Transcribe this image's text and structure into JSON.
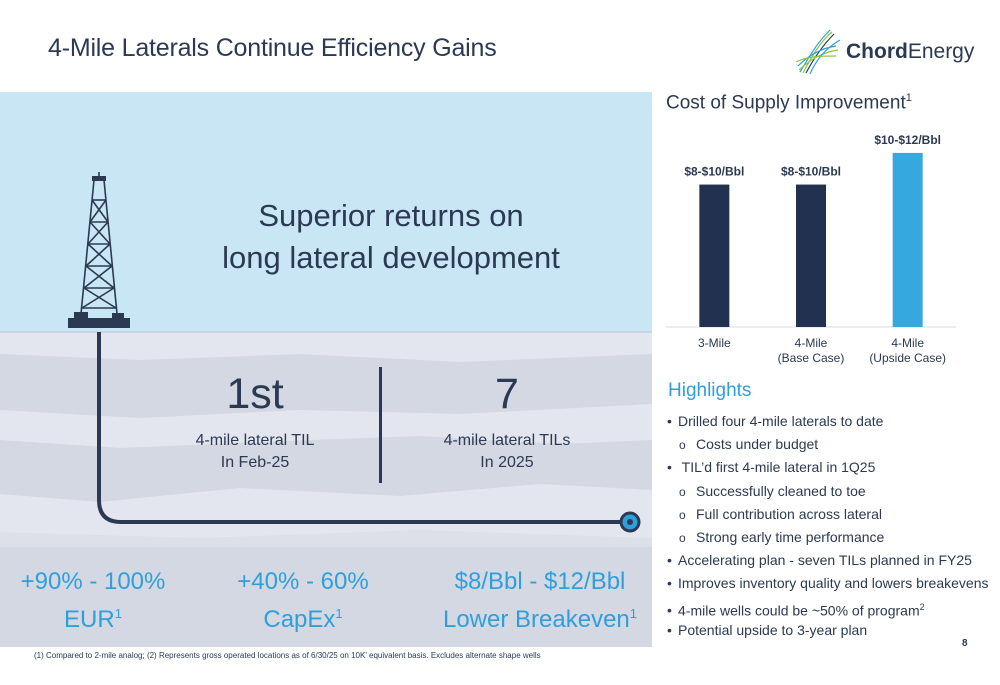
{
  "header": {
    "title": "4-Mile Laterals Continue Efficiency Gains"
  },
  "logo": {
    "brand_bold": "Chord",
    "brand_light": "Energy"
  },
  "illustration": {
    "headline_line1": "Superior returns on",
    "headline_line2": "long lateral development",
    "stats": [
      {
        "value": "1st",
        "label_line1": "4-mile lateral TIL",
        "label_line2": "In Feb-25"
      },
      {
        "value": "7",
        "label_line1": "4-mile lateral TILs",
        "label_line2": "In 2025"
      }
    ],
    "metrics": [
      {
        "line1": "+90% - 100%",
        "line2": "EUR",
        "sup": "1"
      },
      {
        "line1": "+40% - 60%",
        "line2": "CapEx",
        "sup": "1"
      },
      {
        "line1": "$8/Bbl - $12/Bbl",
        "line2": "Lower Breakeven",
        "sup": "1"
      }
    ],
    "colors": {
      "sky": "#c9e6f5",
      "ground": "#e3e6ee",
      "navy": "#2b3a52",
      "accent": "#2f9fdc"
    }
  },
  "chart_data": {
    "type": "bar",
    "title": "Cost of Supply Improvement",
    "title_sup": "1",
    "categories": [
      "3-Mile",
      "4-Mile (Base Case)",
      "4-Mile (Upside Case)"
    ],
    "category_lines": [
      [
        "3-Mile"
      ],
      [
        "4-Mile",
        "(Base Case)"
      ],
      [
        "4-Mile",
        "(Upside Case)"
      ]
    ],
    "series": [
      {
        "values": [
          9,
          9,
          11
        ],
        "ranges": [
          [
            8,
            10
          ],
          [
            8,
            10
          ],
          [
            10,
            12
          ]
        ]
      }
    ],
    "data_labels": [
      "$8-$10/Bbl",
      "$8-$10/Bbl",
      "$10-$12/Bbl"
    ],
    "bar_colors": [
      "#22314f",
      "#22314f",
      "#35a8e0"
    ],
    "ylim": [
      0,
      11.5
    ],
    "grid": false,
    "legend": "none"
  },
  "highlights": {
    "title": "Highlights",
    "items": [
      {
        "level": 1,
        "marker": "•",
        "text": "Drilled four 4-mile laterals to date",
        "sup": ""
      },
      {
        "level": 2,
        "marker": "o",
        "text": "Costs under budget",
        "sup": ""
      },
      {
        "level": 1,
        "marker": "•",
        "text": " TIL’d first 4-mile lateral in 1Q25",
        "sup": ""
      },
      {
        "level": 2,
        "marker": "o",
        "text": "Successfully cleaned to toe",
        "sup": ""
      },
      {
        "level": 2,
        "marker": "o",
        "text": "Full contribution across lateral",
        "sup": ""
      },
      {
        "level": 2,
        "marker": "o",
        "text": "Strong early time performance",
        "sup": ""
      },
      {
        "level": 1,
        "marker": "•",
        "text": "Accelerating plan - seven TILs planned in FY25",
        "sup": ""
      },
      {
        "level": 1,
        "marker": "•",
        "text": "Improves inventory quality and lowers breakevens",
        "sup": ""
      },
      {
        "level": 1,
        "marker": "•",
        "text": "4-mile wells could be ~50% of program",
        "sup": "2"
      },
      {
        "level": 1,
        "marker": "•",
        "text": "Potential upside to 3-year plan",
        "sup": ""
      }
    ]
  },
  "footer": {
    "footnote": "(1) Compared to 2-mile analog; (2) Represents gross operated locations as of 6/30/25 on 10K’ equivalent basis. Excludes alternate shape wells",
    "page_number": "8"
  }
}
